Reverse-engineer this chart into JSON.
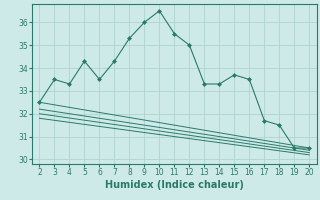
{
  "x_main": [
    2,
    3,
    4,
    5,
    6,
    7,
    8,
    9,
    10,
    11,
    12,
    13,
    14,
    15,
    16,
    17,
    18,
    19,
    20
  ],
  "y_main": [
    32.5,
    33.5,
    33.3,
    34.3,
    33.5,
    34.3,
    35.3,
    36.0,
    36.5,
    35.5,
    35.0,
    33.3,
    33.3,
    33.7,
    33.5,
    31.7,
    31.5,
    30.5,
    30.5
  ],
  "line_starts": [
    32.5,
    32.2,
    32.0,
    31.8
  ],
  "line_ends": [
    30.5,
    30.4,
    30.3,
    30.2
  ],
  "color": "#2a7a6b",
  "bg_color": "#ceeae8",
  "grid_color": "#afd4d0",
  "xlabel": "Humidex (Indice chaleur)",
  "xlim": [
    1.5,
    20.5
  ],
  "ylim": [
    29.8,
    36.8
  ],
  "yticks": [
    30,
    31,
    32,
    33,
    34,
    35,
    36
  ],
  "xticks": [
    2,
    3,
    4,
    5,
    6,
    7,
    8,
    9,
    10,
    11,
    12,
    13,
    14,
    15,
    16,
    17,
    18,
    19,
    20
  ],
  "tick_fontsize": 5.5,
  "xlabel_fontsize": 7.0
}
